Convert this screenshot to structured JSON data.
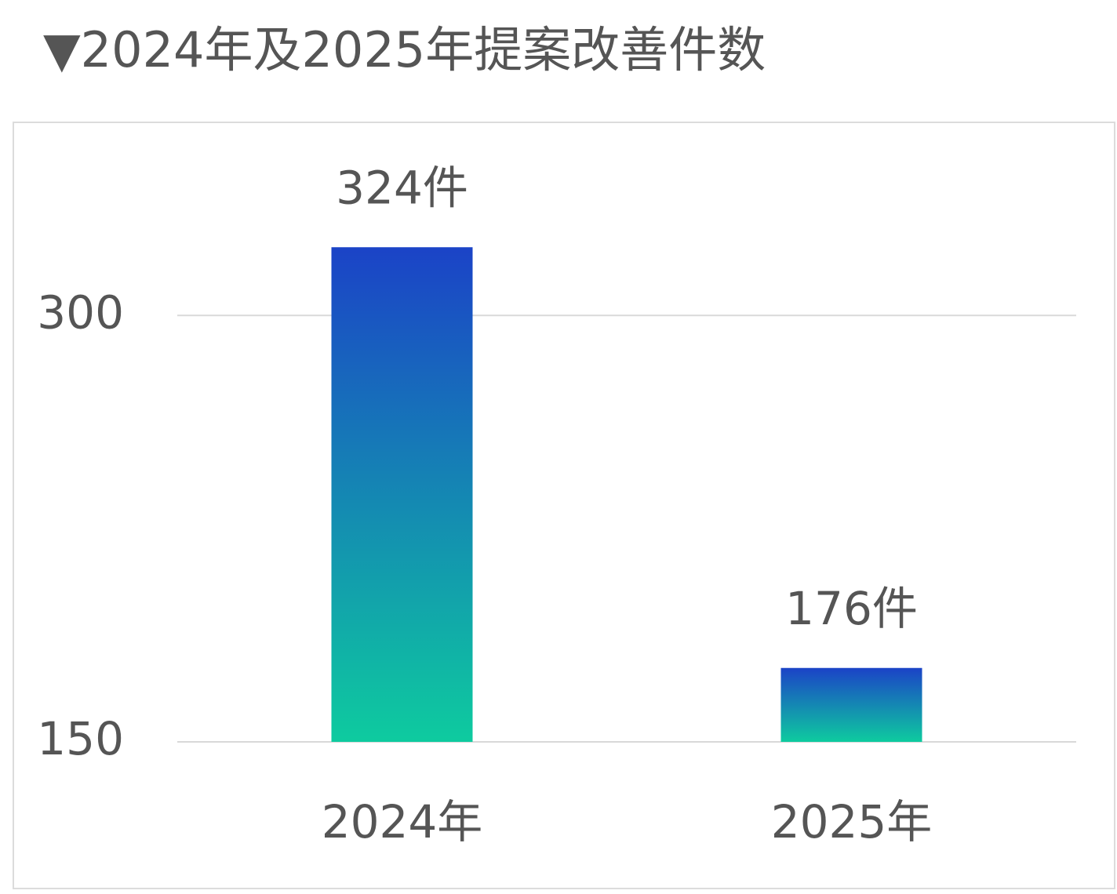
{
  "chart_data": {
    "type": "bar",
    "title": "▼2024年及2025年提案改善件数",
    "categories": [
      "2024年",
      "2025年"
    ],
    "values": [
      324,
      176
    ],
    "value_labels": [
      "324件",
      "176件"
    ],
    "gradient": {
      "top": "#1b43c7",
      "bottom": "#0ecb9f"
    },
    "ylim": [
      150,
      350
    ],
    "yticks": [
      150,
      300
    ],
    "grid": true
  }
}
